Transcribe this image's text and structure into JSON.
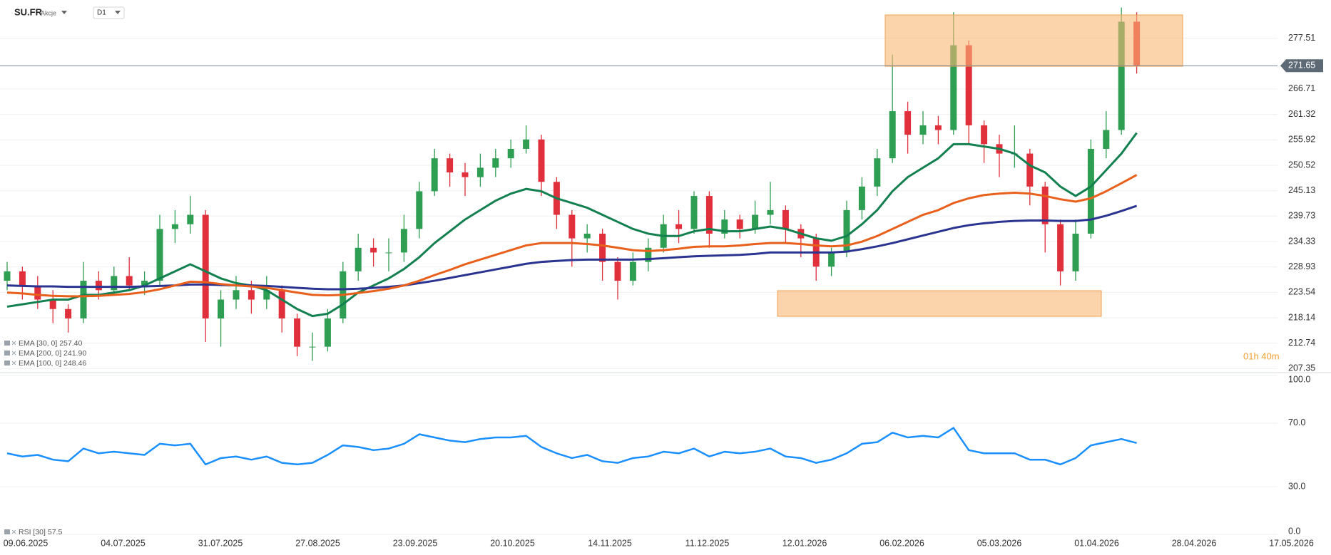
{
  "header": {
    "symbol": "SU.FR",
    "market": "Akcje",
    "interval": "D1"
  },
  "countdown": "01h 40m",
  "chart_data": [
    {
      "type": "candlestick",
      "up_color": "#2e9e52",
      "down_color": "#e0303c",
      "grid": true,
      "ylim": [
        206.8,
        284.7
      ],
      "yticks": [
        207.35,
        212.74,
        218.14,
        223.54,
        228.93,
        234.33,
        239.73,
        245.13,
        250.52,
        255.92,
        261.32,
        266.71,
        277.51
      ],
      "last_price": 271.65,
      "xtick_labels": [
        "09.06.2025",
        "04.07.2025",
        "31.07.2025",
        "27.08.2025",
        "23.09.2025",
        "20.10.2025",
        "14.11.2025",
        "11.12.2025",
        "12.01.2026",
        "06.02.2026",
        "05.03.2026",
        "01.04.2026",
        "28.04.2026",
        "17.05.2026"
      ],
      "candles": [
        [
          226,
          230,
          224,
          228
        ],
        [
          228,
          229,
          222,
          225
        ],
        [
          225,
          227,
          220,
          222
        ],
        [
          222,
          224,
          217,
          220
        ],
        [
          220,
          221,
          215,
          218
        ],
        [
          218,
          230,
          217,
          226
        ],
        [
          226,
          228,
          222,
          224
        ],
        [
          224,
          229,
          223,
          227
        ],
        [
          227,
          231,
          224,
          225
        ],
        [
          225,
          228,
          223,
          226
        ],
        [
          226,
          240,
          225,
          237
        ],
        [
          237,
          241,
          234,
          238
        ],
        [
          238,
          244,
          236,
          240
        ],
        [
          240,
          241,
          213,
          218
        ],
        [
          218,
          224,
          212,
          222
        ],
        [
          222,
          227,
          220,
          224
        ],
        [
          224,
          226,
          219,
          222
        ],
        [
          222,
          227,
          220,
          224
        ],
        [
          224,
          225,
          215,
          218
        ],
        [
          218,
          219,
          210,
          212
        ],
        [
          212,
          215,
          209,
          212
        ],
        [
          212,
          220,
          211,
          218
        ],
        [
          218,
          230,
          217,
          228
        ],
        [
          228,
          236,
          226,
          233
        ],
        [
          233,
          235,
          229,
          232
        ],
        [
          232,
          235,
          228,
          232
        ],
        [
          232,
          240,
          230,
          237
        ],
        [
          237,
          247,
          235,
          245
        ],
        [
          245,
          254,
          244,
          252
        ],
        [
          252,
          253,
          246,
          249
        ],
        [
          249,
          251,
          244,
          248
        ],
        [
          248,
          253,
          246,
          250
        ],
        [
          250,
          254,
          248,
          252
        ],
        [
          252,
          256,
          250,
          254
        ],
        [
          254,
          259,
          253,
          256
        ],
        [
          256,
          257,
          244,
          247
        ],
        [
          247,
          248,
          237,
          240
        ],
        [
          240,
          241,
          229,
          235
        ],
        [
          235,
          238,
          232,
          236
        ],
        [
          236,
          237,
          226,
          230
        ],
        [
          230,
          231,
          222,
          226
        ],
        [
          226,
          232,
          225,
          230
        ],
        [
          230,
          235,
          228,
          233
        ],
        [
          233,
          240,
          232,
          238
        ],
        [
          238,
          241,
          234,
          237
        ],
        [
          237,
          245,
          236,
          244
        ],
        [
          244,
          245,
          233,
          236
        ],
        [
          236,
          241,
          235,
          239
        ],
        [
          239,
          240,
          235,
          237
        ],
        [
          237,
          243,
          236,
          240
        ],
        [
          240,
          247,
          238,
          241
        ],
        [
          241,
          242,
          234,
          237
        ],
        [
          237,
          238,
          231,
          235
        ],
        [
          235,
          236,
          226,
          229
        ],
        [
          229,
          233,
          227,
          232
        ],
        [
          232,
          243,
          231,
          241
        ],
        [
          241,
          248,
          239,
          246
        ],
        [
          246,
          254,
          244,
          252
        ],
        [
          252,
          274,
          251,
          262
        ],
        [
          262,
          264,
          253,
          257
        ],
        [
          257,
          262,
          255,
          259
        ],
        [
          259,
          261,
          255,
          258
        ],
        [
          258,
          283,
          257,
          276
        ],
        [
          276,
          277,
          255,
          259
        ],
        [
          259,
          260,
          251,
          255
        ],
        [
          255,
          257,
          248,
          253
        ],
        [
          253,
          259,
          250,
          253
        ],
        [
          253,
          254,
          242,
          246
        ],
        [
          246,
          247,
          232,
          238
        ],
        [
          238,
          239,
          225,
          228
        ],
        [
          228,
          239,
          226,
          236
        ],
        [
          236,
          256,
          235,
          254
        ],
        [
          254,
          262,
          252,
          258
        ],
        [
          258,
          284,
          257,
          281
        ],
        [
          281,
          283,
          270,
          271.65
        ]
      ],
      "series": [
        {
          "name": "EMA [30, 0]",
          "legend_value": "257.40",
          "color": "#12804f",
          "values": [
            220.5,
            221,
            221.5,
            222,
            222,
            223,
            223,
            223.5,
            224,
            225,
            226.5,
            228,
            229.5,
            228,
            226.5,
            225.5,
            225,
            224,
            222,
            220,
            218.5,
            219,
            221,
            223.5,
            225,
            226.5,
            228.5,
            231,
            234,
            236.5,
            239,
            241,
            243,
            244.5,
            245.5,
            245,
            243.5,
            242.5,
            241.5,
            240,
            238.5,
            237,
            236,
            235.5,
            235.5,
            236.5,
            237,
            236.5,
            236.5,
            237,
            237.5,
            237,
            236,
            235,
            234.5,
            235.5,
            238,
            241,
            245,
            248,
            250,
            252,
            255,
            255,
            254.5,
            254,
            253,
            250.5,
            249,
            246,
            244,
            246,
            249.5,
            253,
            257.4
          ]
        },
        {
          "name": "EMA [200, 0]",
          "legend_value": "241.90",
          "color": "#2b3490",
          "values": [
            225,
            224.9,
            224.8,
            224.8,
            224.7,
            224.7,
            224.7,
            224.7,
            224.7,
            224.8,
            224.9,
            225,
            225.2,
            225.2,
            225.1,
            225,
            225,
            224.9,
            224.7,
            224.5,
            224.3,
            224.2,
            224.2,
            224.3,
            224.5,
            224.7,
            225,
            225.5,
            226,
            226.6,
            227.2,
            227.8,
            228.4,
            229,
            229.6,
            230,
            230.2,
            230.4,
            230.5,
            230.5,
            230.5,
            230.5,
            230.6,
            230.8,
            231,
            231.2,
            231.3,
            231.4,
            231.5,
            231.7,
            232,
            232,
            232,
            232,
            232,
            232.2,
            232.7,
            233.3,
            234,
            234.8,
            235.6,
            236.4,
            237.2,
            237.8,
            238.2,
            238.5,
            238.7,
            238.8,
            238.8,
            238.7,
            238.7,
            239,
            239.8,
            240.8,
            241.9
          ]
        },
        {
          "name": "EMA [100, 0]",
          "legend_value": "248.46",
          "color": "#e8601c",
          "values": [
            223.5,
            223.3,
            223,
            222.8,
            222.7,
            222.7,
            222.8,
            223,
            223.2,
            223.6,
            224.2,
            225,
            225.8,
            225.7,
            225.3,
            225,
            224.8,
            224.5,
            224,
            223.5,
            223,
            222.9,
            223,
            223.4,
            223.8,
            224.3,
            225,
            226,
            227.2,
            228.3,
            229.5,
            230.5,
            231.5,
            232.5,
            233.5,
            234,
            234,
            234,
            233.8,
            233.5,
            233,
            232.5,
            232.3,
            232.5,
            232.8,
            233.2,
            233.3,
            233.3,
            233.5,
            233.8,
            234,
            234,
            233.8,
            233.5,
            233.3,
            233.5,
            234.3,
            235.5,
            237,
            238.5,
            240,
            241,
            242.5,
            243.5,
            244.2,
            244.5,
            244.7,
            244.5,
            244,
            243.3,
            242.8,
            243.5,
            245,
            246.7,
            248.46
          ]
        }
      ]
    },
    {
      "type": "line",
      "ylim": [
        0,
        100
      ],
      "yticks": [
        {
          "value": 100,
          "label": "100.0"
        },
        {
          "value": 70,
          "label": "70.0"
        },
        {
          "value": 30,
          "label": "30.0"
        },
        {
          "value": 0,
          "label": "0.0"
        }
      ],
      "series": [
        {
          "name": "RSI [30]",
          "legend_value": "57.5",
          "color": "#1a8fff",
          "values": [
            51,
            49,
            50,
            47,
            46,
            54,
            51,
            52,
            51,
            50,
            57,
            56,
            57,
            44,
            48,
            49,
            47,
            49,
            45,
            44,
            45,
            50,
            56,
            55,
            53,
            54,
            57,
            63,
            61,
            59,
            58,
            60,
            61,
            61,
            62,
            55,
            51,
            48,
            50,
            46,
            45,
            48,
            49,
            52,
            51,
            54,
            49,
            52,
            51,
            52,
            54,
            49,
            48,
            45,
            47,
            51,
            57,
            58,
            64,
            61,
            62,
            61,
            67,
            53,
            51,
            51,
            51,
            47,
            47,
            44,
            48,
            56,
            58,
            60,
            57.5
          ]
        }
      ]
    }
  ]
}
